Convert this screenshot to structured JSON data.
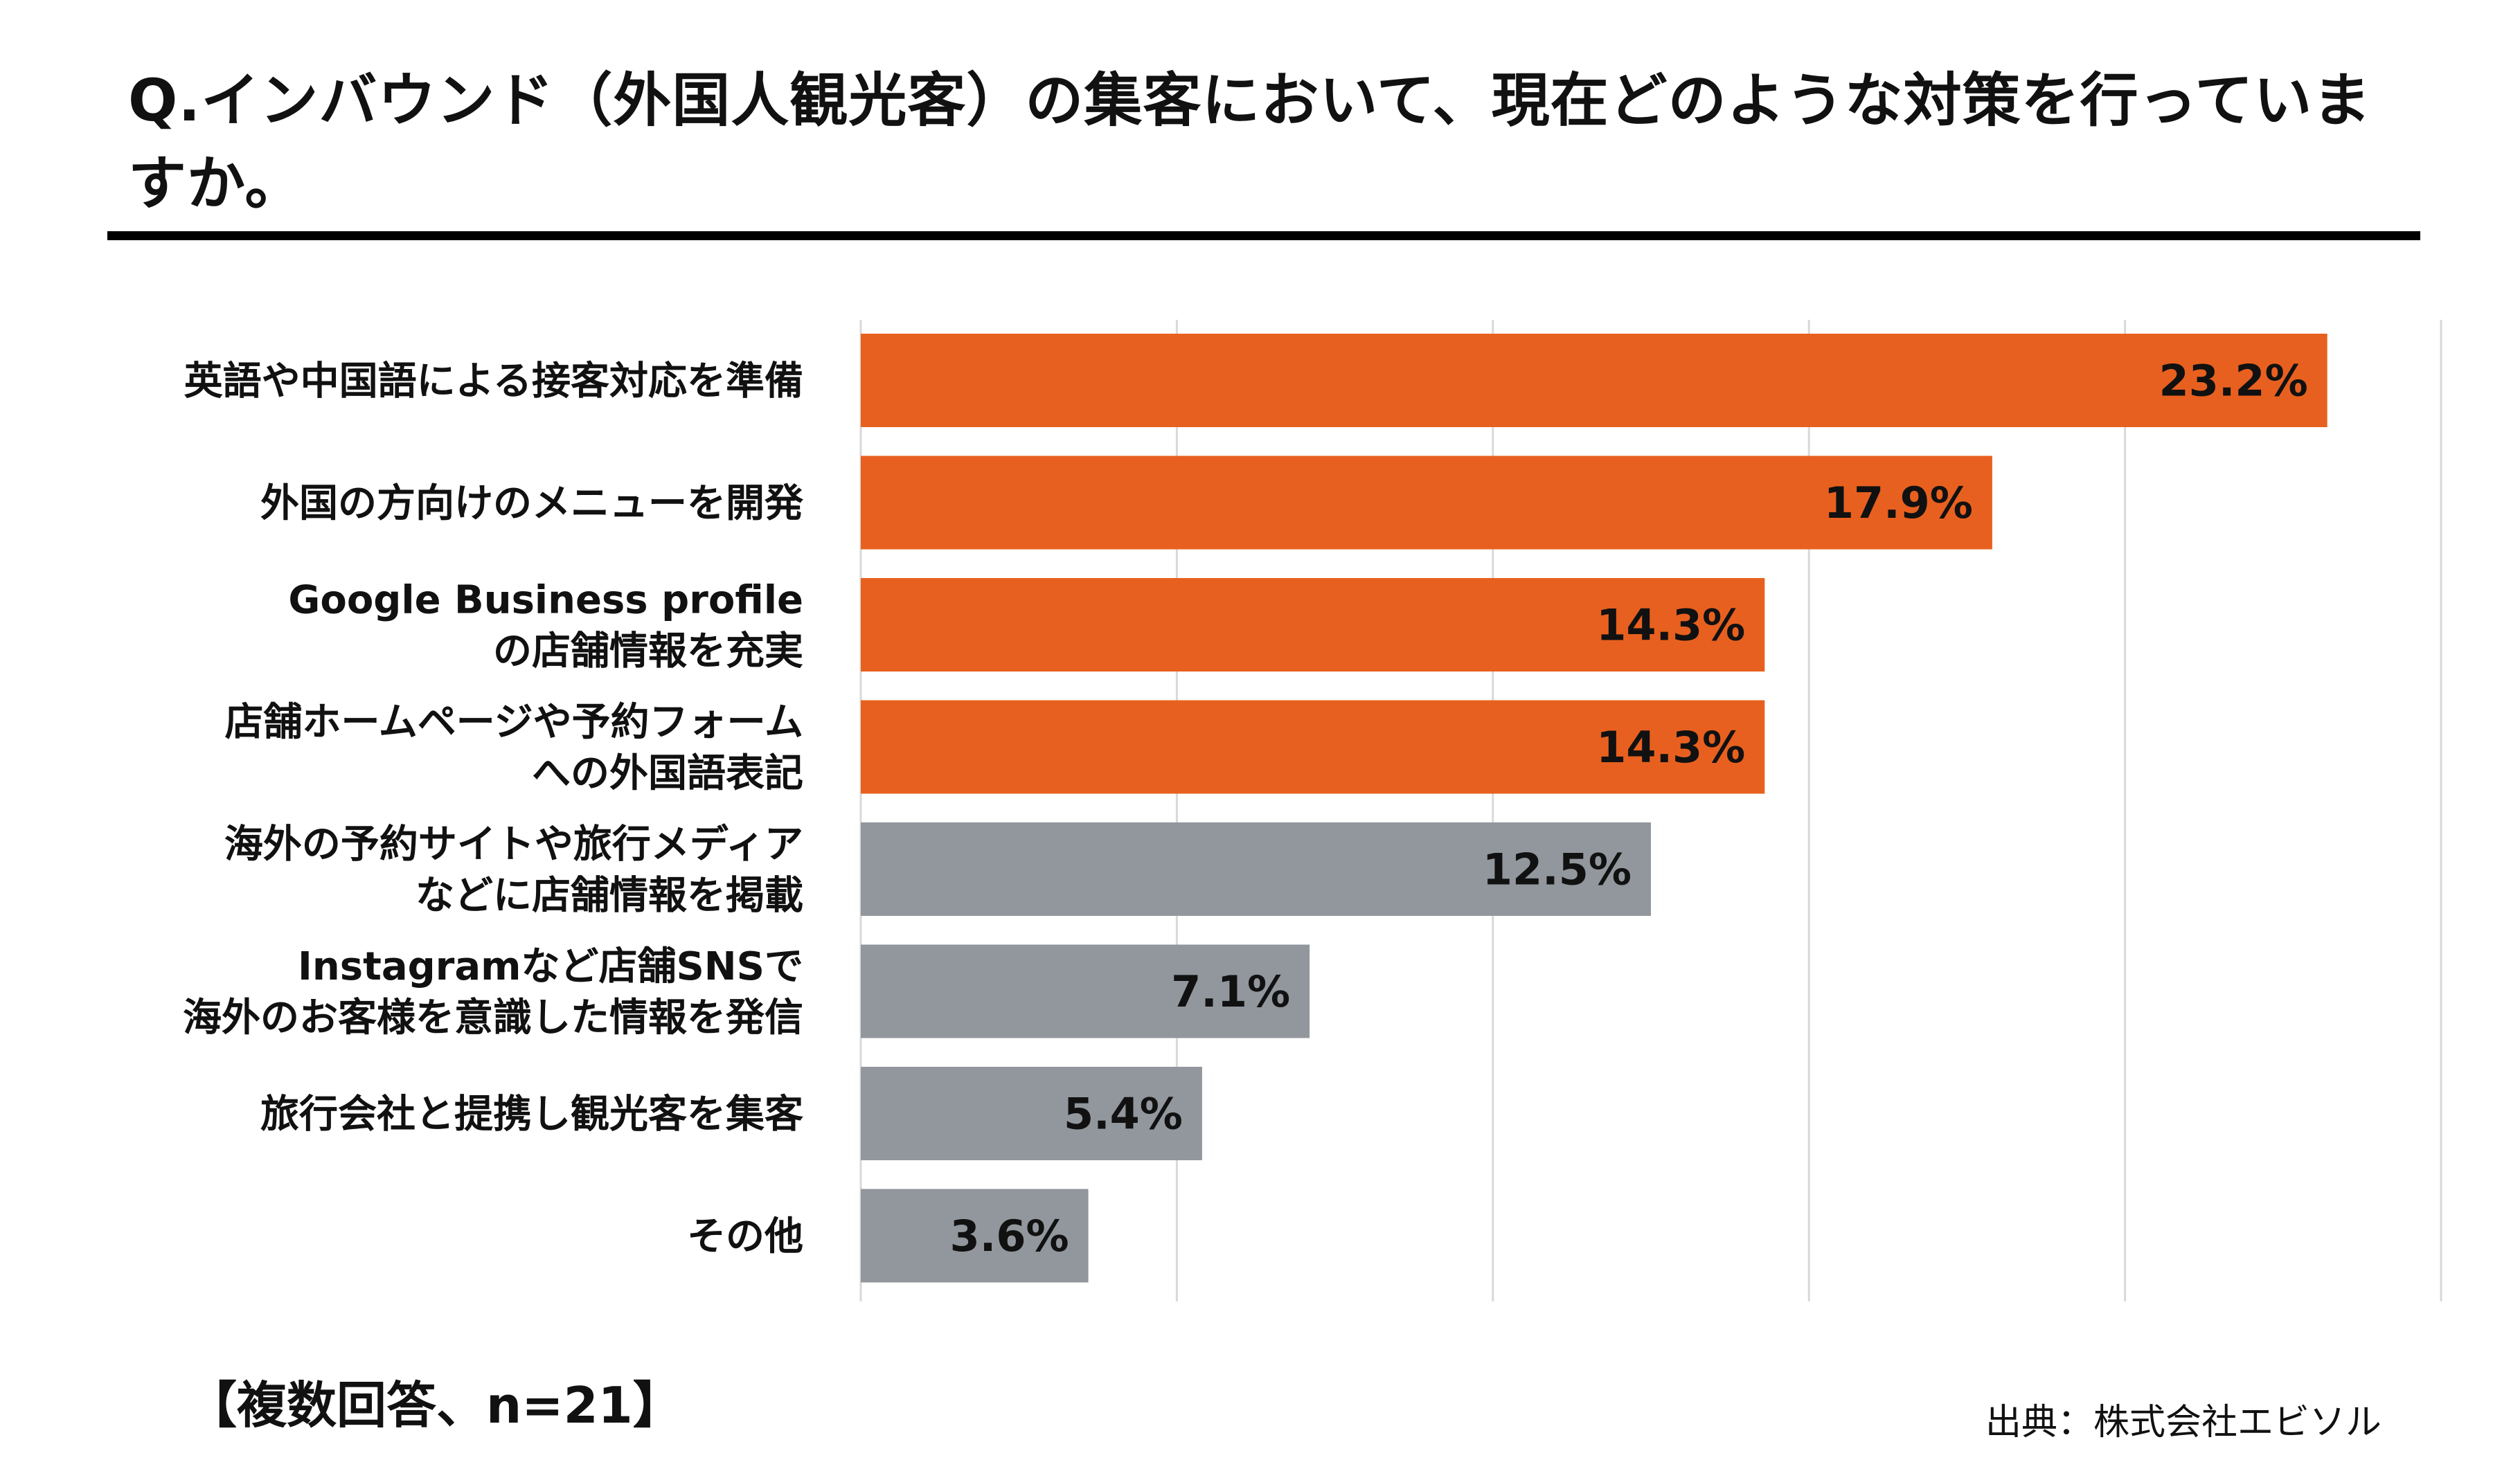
{
  "title": "Q.インバウンド（外国人観光客）の集客において、現在どのような対策を行っていますか。",
  "note": "【複数回答、n=21】",
  "source": "出典：株式会社エビソル",
  "colors": {
    "highlight": "#E8601F",
    "muted": "#91979C",
    "grid": "#D9D9D9"
  },
  "chart_data": {
    "type": "bar",
    "orientation": "horizontal",
    "title": "Q.インバウンド（外国人観光客）の集客において、現在どのような対策を行っていますか。",
    "xlabel": "",
    "ylabel": "",
    "xlim": [
      0,
      25
    ],
    "grid": true,
    "unit": "%",
    "categories": [
      [
        "英語や中国語による接客対応を準備"
      ],
      [
        "外国の方向けのメニューを開発"
      ],
      [
        "Google Business profile",
        "の店舗情報を充実"
      ],
      [
        "店舗ホームページや予約フォーム",
        "への外国語表記"
      ],
      [
        "海外の予約サイトや旅行メディア",
        "などに店舗情報を掲載"
      ],
      [
        "Instagramなど店舗SNSで",
        "海外のお客様を意識した情報を発信"
      ],
      [
        "旅行会社と提携し観光客を集客"
      ],
      [
        "その他"
      ]
    ],
    "values": [
      23.2,
      17.9,
      14.3,
      14.3,
      12.5,
      7.1,
      5.4,
      3.6
    ],
    "value_labels": [
      "23.2%",
      "17.9%",
      "14.3%",
      "14.3%",
      "12.5%",
      "7.1%",
      "5.4%",
      "3.6%"
    ],
    "highlight": [
      true,
      true,
      true,
      true,
      false,
      false,
      false,
      false
    ]
  }
}
